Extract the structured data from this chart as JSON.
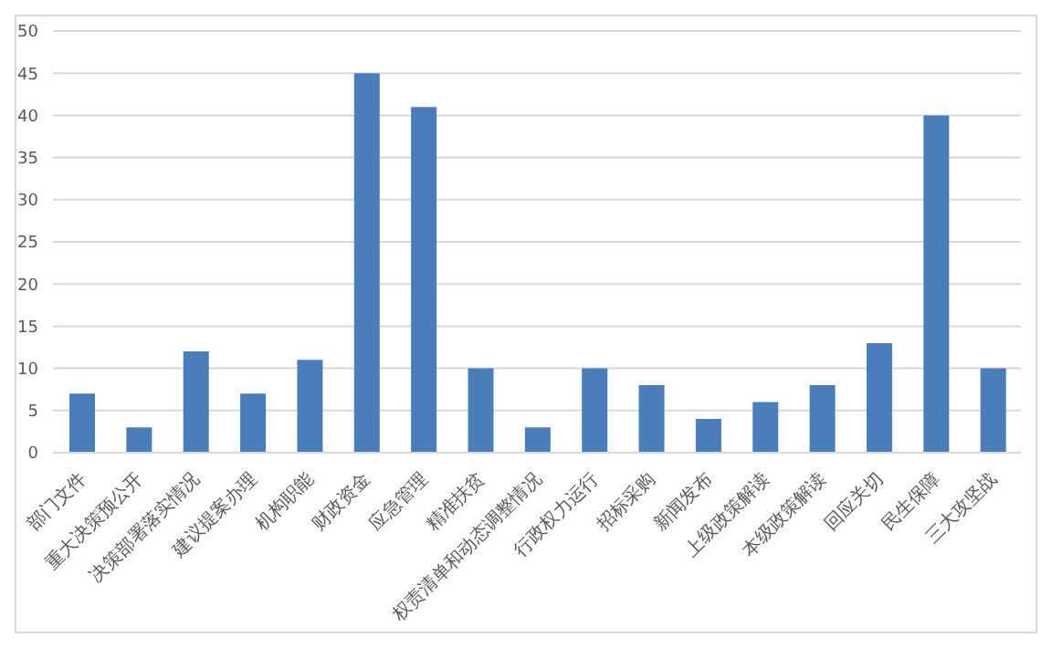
{
  "chart_data": {
    "type": "bar",
    "categories": [
      "部门文件",
      "重大决策预公开",
      "决策部署落实情况",
      "建议提案办理",
      "机构职能",
      "财政资金",
      "应急管理",
      "精准扶贫",
      "权责清单和动态调整情况",
      "行政权力运行",
      "招标采购",
      "新闻发布",
      "上级政策解读",
      "本级政策解读",
      "回应关切",
      "民生保障",
      "三大攻坚战"
    ],
    "values": [
      7,
      3,
      12,
      7,
      11,
      45,
      41,
      10,
      3,
      10,
      8,
      4,
      6,
      8,
      13,
      40,
      10
    ],
    "color": "#4a7ebb",
    "ylim": [
      0,
      50
    ],
    "yticks": [
      0,
      5,
      10,
      15,
      20,
      25,
      30,
      35,
      40,
      45,
      50
    ],
    "grid": "y"
  }
}
